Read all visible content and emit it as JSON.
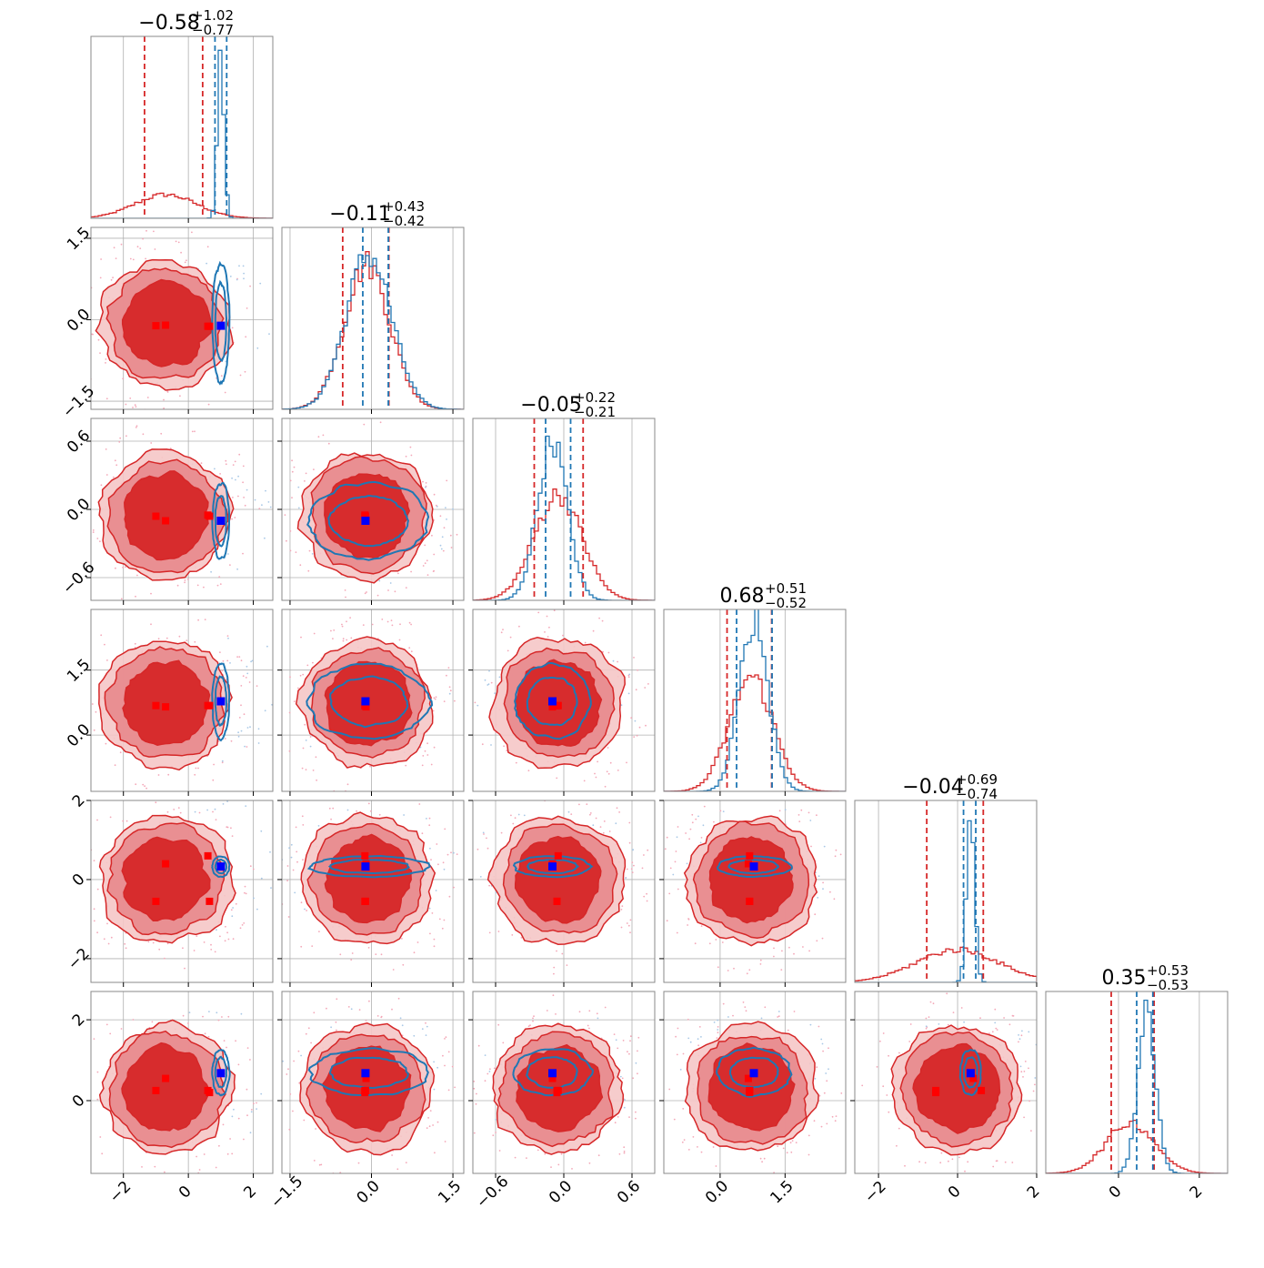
{
  "chart_data": {
    "type": "corner",
    "colors": {
      "red": "#d62728",
      "red_mid": "#e8888c",
      "red_light": "#f5c6c7",
      "blue": "#1f77b4",
      "blue_marker": "#0000ff",
      "red_marker": "#ff0000",
      "grid": "#b0b0b0"
    },
    "parameters": [
      {
        "title_value": "−0.58",
        "title_plus": "+1.02",
        "title_minus": "−0.77",
        "range": [
          -3.0,
          2.6
        ],
        "ticks": [
          -2,
          0,
          2
        ],
        "tick_labels": [
          "−2",
          "0",
          "2"
        ],
        "red": {
          "q": [
            -1.35,
            -0.58,
            0.44
          ],
          "peak": -0.7,
          "sd": 0.95,
          "height": 0.13
        },
        "blue": {
          "q": [
            0.82,
            1.0,
            1.18
          ],
          "peak": 1.0,
          "sd": 0.1,
          "height": 0.93
        }
      },
      {
        "title_value": "−0.11",
        "title_plus": "+0.43",
        "title_minus": "−0.42",
        "range": [
          -1.65,
          1.7
        ],
        "ticks": [
          -1.5,
          0.0,
          1.5
        ],
        "tick_labels": [
          "−1.5",
          "0.0",
          "1.5"
        ],
        "red": {
          "q": [
            -0.53,
            -0.11,
            0.32
          ],
          "peak": -0.08,
          "sd": 0.42,
          "height": 0.8
        },
        "blue": {
          "q": [
            -0.16,
            -0.05,
            0.31
          ],
          "peak": -0.05,
          "sd": 0.42,
          "height": 0.85
        }
      },
      {
        "title_value": "−0.05",
        "title_plus": "+0.22",
        "title_minus": "−0.21",
        "range": [
          -0.8,
          0.8
        ],
        "ticks": [
          -0.6,
          0.0,
          0.6
        ],
        "tick_labels": [
          "−0.6",
          "0.0",
          "0.6"
        ],
        "red": {
          "q": [
            -0.26,
            -0.05,
            0.17
          ],
          "peak": -0.05,
          "sd": 0.21,
          "height": 0.58
        },
        "blue": {
          "q": [
            -0.16,
            -0.1,
            0.06
          ],
          "peak": -0.1,
          "sd": 0.13,
          "height": 0.88
        }
      },
      {
        "title_value": "0.68",
        "title_plus": "+0.51",
        "title_minus": "−0.52",
        "range": [
          -1.3,
          2.9
        ],
        "ticks": [
          0.0,
          1.5
        ],
        "tick_labels": [
          "0.0",
          "1.5"
        ],
        "red": {
          "q": [
            0.16,
            0.68,
            1.19
          ],
          "peak": 0.72,
          "sd": 0.5,
          "height": 0.63
        },
        "blue": {
          "q": [
            0.38,
            0.78,
            1.2
          ],
          "peak": 0.78,
          "sd": 0.33,
          "height": 0.95
        }
      },
      {
        "title_value": "−0.04",
        "title_plus": "+0.69",
        "title_minus": "−0.74",
        "range": [
          -2.6,
          2.0
        ],
        "ticks": [
          -2,
          0,
          2
        ],
        "tick_labels": [
          "−2",
          "0",
          "2"
        ],
        "red": {
          "q": [
            -0.78,
            -0.04,
            0.65
          ],
          "peak": 0.0,
          "sd": 1.05,
          "height": 0.18
        },
        "blue": {
          "q": [
            0.15,
            0.33,
            0.46
          ],
          "peak": 0.33,
          "sd": 0.1,
          "height": 0.93
        }
      },
      {
        "title_value": "0.35",
        "title_plus": "+0.53",
        "title_minus": "−0.53",
        "range": [
          -1.8,
          2.7
        ],
        "ticks": [
          0,
          2
        ],
        "tick_labels": [
          "0",
          "2"
        ],
        "red": {
          "q": [
            -0.18,
            0.35,
            0.88
          ],
          "peak": 0.3,
          "sd": 0.6,
          "height": 0.28
        },
        "blue": {
          "q": [
            0.45,
            0.65,
            0.85
          ],
          "peak": 0.7,
          "sd": 0.22,
          "height": 0.88
        }
      }
    ],
    "red_markers": [
      [
        -1.0,
        -0.11,
        -0.06,
        0.68,
        -0.55,
        0.25
      ],
      [
        -0.7,
        -0.1,
        -0.1,
        0.65,
        0.4,
        0.55
      ],
      [
        0.6,
        -0.12,
        -0.05,
        0.68,
        0.6,
        0.25
      ],
      [
        0.65,
        -0.12,
        -0.06,
        0.68,
        -0.55,
        0.2
      ]
    ],
    "blue_marker": [
      1.0,
      -0.11,
      -0.1,
      0.78,
      0.33,
      0.68
    ],
    "x_tick_labels_bottom": [
      "−2",
      "0",
      "2",
      "−1.5",
      "0.0",
      "1.5",
      "−0.6",
      "0.0",
      "0.6",
      "0.0",
      "1.5",
      "−2",
      "0",
      "2",
      "0",
      "2"
    ]
  }
}
